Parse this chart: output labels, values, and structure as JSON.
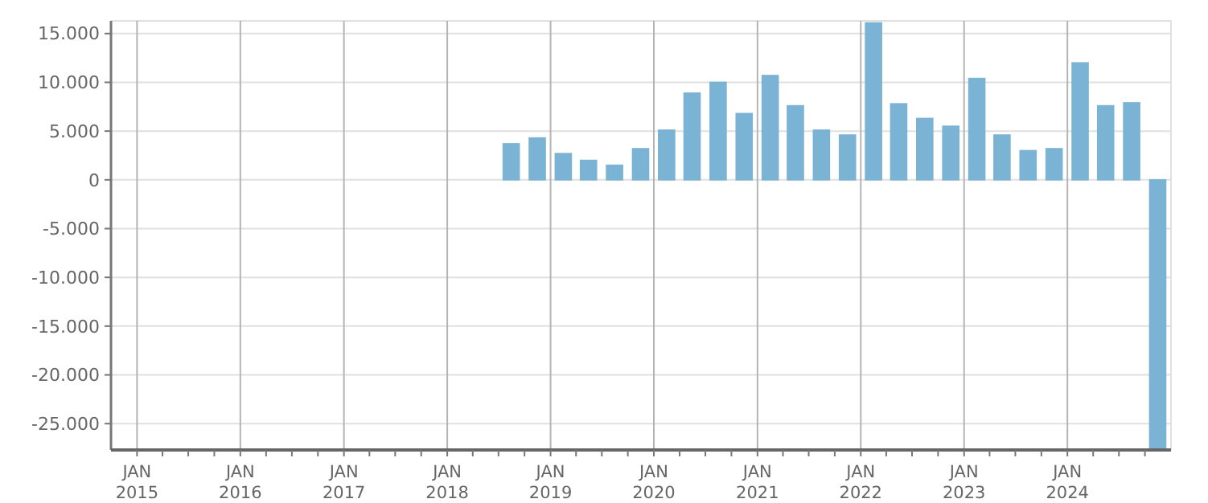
{
  "chart_data": {
    "type": "bar",
    "x": [
      "2014-11-15",
      "2015-02-15",
      "2015-05-15",
      "2015-08-15",
      "2015-11-15",
      "2016-02-15",
      "2016-05-15",
      "2016-08-15",
      "2016-11-15",
      "2017-02-15",
      "2017-05-15",
      "2017-08-15",
      "2017-11-15",
      "2018-02-15",
      "2018-05-15",
      "2018-08-15",
      "2018-11-15",
      "2019-02-15",
      "2019-05-15",
      "2019-08-15",
      "2019-11-15",
      "2020-02-15",
      "2020-05-15",
      "2020-08-15",
      "2020-11-15",
      "2021-02-15",
      "2021-05-15",
      "2021-08-15",
      "2021-11-15",
      "2022-02-15",
      "2022-05-15",
      "2022-08-15",
      "2022-11-15",
      "2023-02-15",
      "2023-05-15",
      "2023-08-15",
      "2023-11-15",
      "2024-02-15",
      "2024-05-15",
      "2024-08-15",
      "2024-11-15"
    ],
    "values": [
      0,
      0,
      0,
      0,
      0,
      0,
      0,
      0,
      0,
      0,
      0,
      0,
      0,
      0,
      0,
      3700,
      4300,
      2700,
      2000,
      1500,
      3200,
      5100,
      8900,
      10000,
      6800,
      10700,
      7600,
      5100,
      4600,
      16100,
      7800,
      6300,
      5500,
      10400,
      4600,
      3000,
      3200,
      12000,
      7600,
      7900,
      -27500
    ],
    "color": "#7ab3d4",
    "xlim": [
      "2014-10-01",
      "2025-01-01"
    ],
    "xticks": [
      {
        "value": "2015-01-01",
        "label": "JAN 2015"
      },
      {
        "value": "2015-04-01",
        "label": null
      },
      {
        "value": "2015-07-01",
        "label": null
      },
      {
        "value": "2015-10-01",
        "label": null
      },
      {
        "value": "2016-01-01",
        "label": "JAN 2016"
      },
      {
        "value": "2016-04-01",
        "label": null
      },
      {
        "value": "2016-07-01",
        "label": null
      },
      {
        "value": "2016-10-01",
        "label": null
      },
      {
        "value": "2017-01-01",
        "label": "JAN 2017"
      },
      {
        "value": "2017-04-01",
        "label": null
      },
      {
        "value": "2017-07-01",
        "label": null
      },
      {
        "value": "2017-10-01",
        "label": null
      },
      {
        "value": "2018-01-01",
        "label": "JAN 2018"
      },
      {
        "value": "2018-04-01",
        "label": null
      },
      {
        "value": "2018-07-01",
        "label": null
      },
      {
        "value": "2018-10-01",
        "label": null
      },
      {
        "value": "2019-01-01",
        "label": "JAN 2019"
      },
      {
        "value": "2019-04-01",
        "label": null
      },
      {
        "value": "2019-07-01",
        "label": null
      },
      {
        "value": "2019-10-01",
        "label": null
      },
      {
        "value": "2020-01-01",
        "label": "JAN 2020"
      },
      {
        "value": "2020-04-01",
        "label": null
      },
      {
        "value": "2020-07-01",
        "label": null
      },
      {
        "value": "2020-10-01",
        "label": null
      },
      {
        "value": "2021-01-01",
        "label": "JAN 2021"
      },
      {
        "value": "2021-04-01",
        "label": null
      },
      {
        "value": "2021-07-01",
        "label": null
      },
      {
        "value": "2021-10-01",
        "label": null
      },
      {
        "value": "2022-01-01",
        "label": "JAN 2022"
      },
      {
        "value": "2022-04-01",
        "label": null
      },
      {
        "value": "2022-07-01",
        "label": null
      },
      {
        "value": "2022-10-01",
        "label": null
      },
      {
        "value": "2023-01-01",
        "label": "JAN 2023"
      },
      {
        "value": "2023-04-01",
        "label": null
      },
      {
        "value": "2023-07-01",
        "label": null
      },
      {
        "value": "2023-10-01",
        "label": null
      },
      {
        "value": "2024-01-01",
        "label": "JAN 2024"
      },
      {
        "value": "2024-04-01",
        "label": null
      },
      {
        "value": "2024-07-01",
        "label": null
      },
      {
        "value": "2024-10-01",
        "label": null
      }
    ],
    "ylim": [
      -27700,
      16300
    ],
    "yticks": [
      {
        "value": -25000,
        "label": "-25.000"
      },
      {
        "value": -20000,
        "label": "-20.000"
      },
      {
        "value": -15000,
        "label": "-15.000"
      },
      {
        "value": -10000,
        "label": "-10.000"
      },
      {
        "value": -5000,
        "label": "-5.000"
      },
      {
        "value": 0,
        "label": "0"
      },
      {
        "value": 5000,
        "label": "5.000"
      },
      {
        "value": 10000,
        "label": "10.000"
      },
      {
        "value": 15000,
        "label": "15.000"
      }
    ],
    "grid": true
  }
}
